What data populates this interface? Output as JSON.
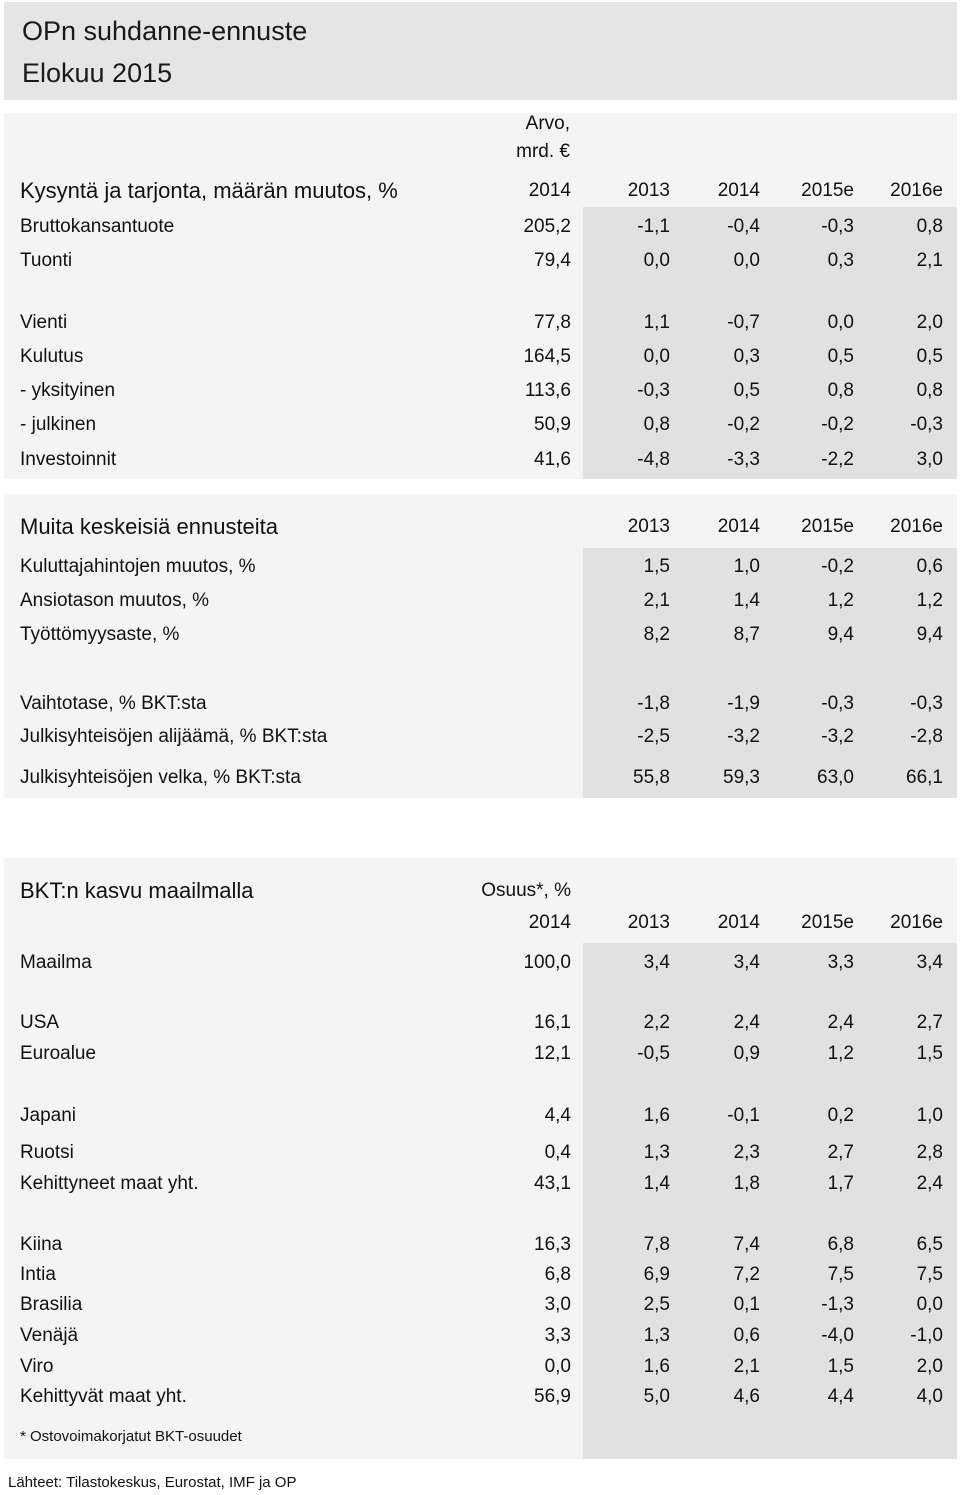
{
  "header": {
    "title": "OPn suhdanne-ennuste",
    "subtitle": "Elokuu 2015"
  },
  "section1": {
    "unit_label_line1": "Arvo,",
    "unit_label_line2": "mrd. €",
    "title": "Kysyntä ja tarjonta, määrän muutos, %",
    "value_year": "2014",
    "years": [
      "2013",
      "2014",
      "2015e",
      "2016e"
    ],
    "rows": [
      {
        "label": "Bruttokansantuote",
        "value": "205,2",
        "cells": [
          "-1,1",
          "-0,4",
          "-0,3",
          "0,8"
        ]
      },
      {
        "label": "Tuonti",
        "value": "79,4",
        "cells": [
          "0,0",
          "0,0",
          "0,3",
          "2,1"
        ]
      },
      {
        "label": "Vienti",
        "value": "77,8",
        "cells": [
          "1,1",
          "-0,7",
          "0,0",
          "2,0"
        ]
      },
      {
        "label": "Kulutus",
        "value": "164,5",
        "cells": [
          "0,0",
          "0,3",
          "0,5",
          "0,5"
        ]
      },
      {
        "label": " - yksityinen",
        "value": "113,6",
        "cells": [
          "-0,3",
          "0,5",
          "0,8",
          "0,8"
        ]
      },
      {
        "label": " - julkinen",
        "value": "50,9",
        "cells": [
          "0,8",
          "-0,2",
          "-0,2",
          "-0,3"
        ]
      },
      {
        "label": "Investoinnit",
        "value": "41,6",
        "cells": [
          "-4,8",
          "-3,3",
          "-2,2",
          "3,0"
        ]
      }
    ]
  },
  "section2": {
    "title": "Muita keskeisiä ennusteita",
    "years": [
      "2013",
      "2014",
      "2015e",
      "2016e"
    ],
    "rows": [
      {
        "label": "Kuluttajahintojen muutos, %",
        "cells": [
          "1,5",
          "1,0",
          "-0,2",
          "0,6"
        ]
      },
      {
        "label": "Ansiotason muutos, %",
        "cells": [
          "2,1",
          "1,4",
          "1,2",
          "1,2"
        ]
      },
      {
        "label": "Työttömyysaste, %",
        "cells": [
          "8,2",
          "8,7",
          "9,4",
          "9,4"
        ]
      },
      {
        "label": "Vaihtotase, % BKT:sta",
        "cells": [
          "-1,8",
          "-1,9",
          "-0,3",
          "-0,3"
        ]
      },
      {
        "label": "Julkisyhteisöjen alijäämä, % BKT:sta",
        "cells": [
          "-2,5",
          "-3,2",
          "-3,2",
          "-2,8"
        ]
      },
      {
        "label": "Julkisyhteisöjen velka, % BKT:sta",
        "cells": [
          "55,8",
          "59,3",
          "63,0",
          "66,1"
        ]
      }
    ]
  },
  "section3": {
    "title": "BKT:n kasvu maailmalla",
    "share_label": "Osuus*, %",
    "value_year": "2014",
    "years": [
      "2013",
      "2014",
      "2015e",
      "2016e"
    ],
    "rows": [
      {
        "label": "Maailma",
        "value": "100,0",
        "cells": [
          "3,4",
          "3,4",
          "3,3",
          "3,4"
        ]
      },
      {
        "label": "USA",
        "value": "16,1",
        "cells": [
          "2,2",
          "2,4",
          "2,4",
          "2,7"
        ]
      },
      {
        "label": "Euroalue",
        "value": "12,1",
        "cells": [
          "-0,5",
          "0,9",
          "1,2",
          "1,5"
        ]
      },
      {
        "label": "Japani",
        "value": "4,4",
        "cells": [
          "1,6",
          "-0,1",
          "0,2",
          "1,0"
        ]
      },
      {
        "label": "Ruotsi",
        "value": "0,4",
        "cells": [
          "1,3",
          "2,3",
          "2,7",
          "2,8"
        ]
      },
      {
        "label": "Kehittyneet maat yht.",
        "value": "43,1",
        "cells": [
          "1,4",
          "1,8",
          "1,7",
          "2,4"
        ]
      },
      {
        "label": "Kiina",
        "value": "16,3",
        "cells": [
          "7,8",
          "7,4",
          "6,8",
          "6,5"
        ]
      },
      {
        "label": "Intia",
        "value": "6,8",
        "cells": [
          "6,9",
          "7,2",
          "7,5",
          "7,5"
        ]
      },
      {
        "label": "Brasilia",
        "value": "3,0",
        "cells": [
          "2,5",
          "0,1",
          "-1,3",
          "0,0"
        ]
      },
      {
        "label": "Venäjä",
        "value": "3,3",
        "cells": [
          "1,3",
          "0,6",
          "-4,0",
          "-1,0"
        ]
      },
      {
        "label": "Viro",
        "value": "0,0",
        "cells": [
          "1,6",
          "2,1",
          "1,5",
          "2,0"
        ]
      },
      {
        "label": "Kehittyvät maat yht.",
        "value": "56,9",
        "cells": [
          "5,0",
          "4,6",
          "4,4",
          "4,0"
        ]
      }
    ],
    "footnote": "* Ostovoimakorjatut BKT-osuudet"
  },
  "source": "Lähteet: Tilastokeskus, Eurostat, IMF ja OP"
}
